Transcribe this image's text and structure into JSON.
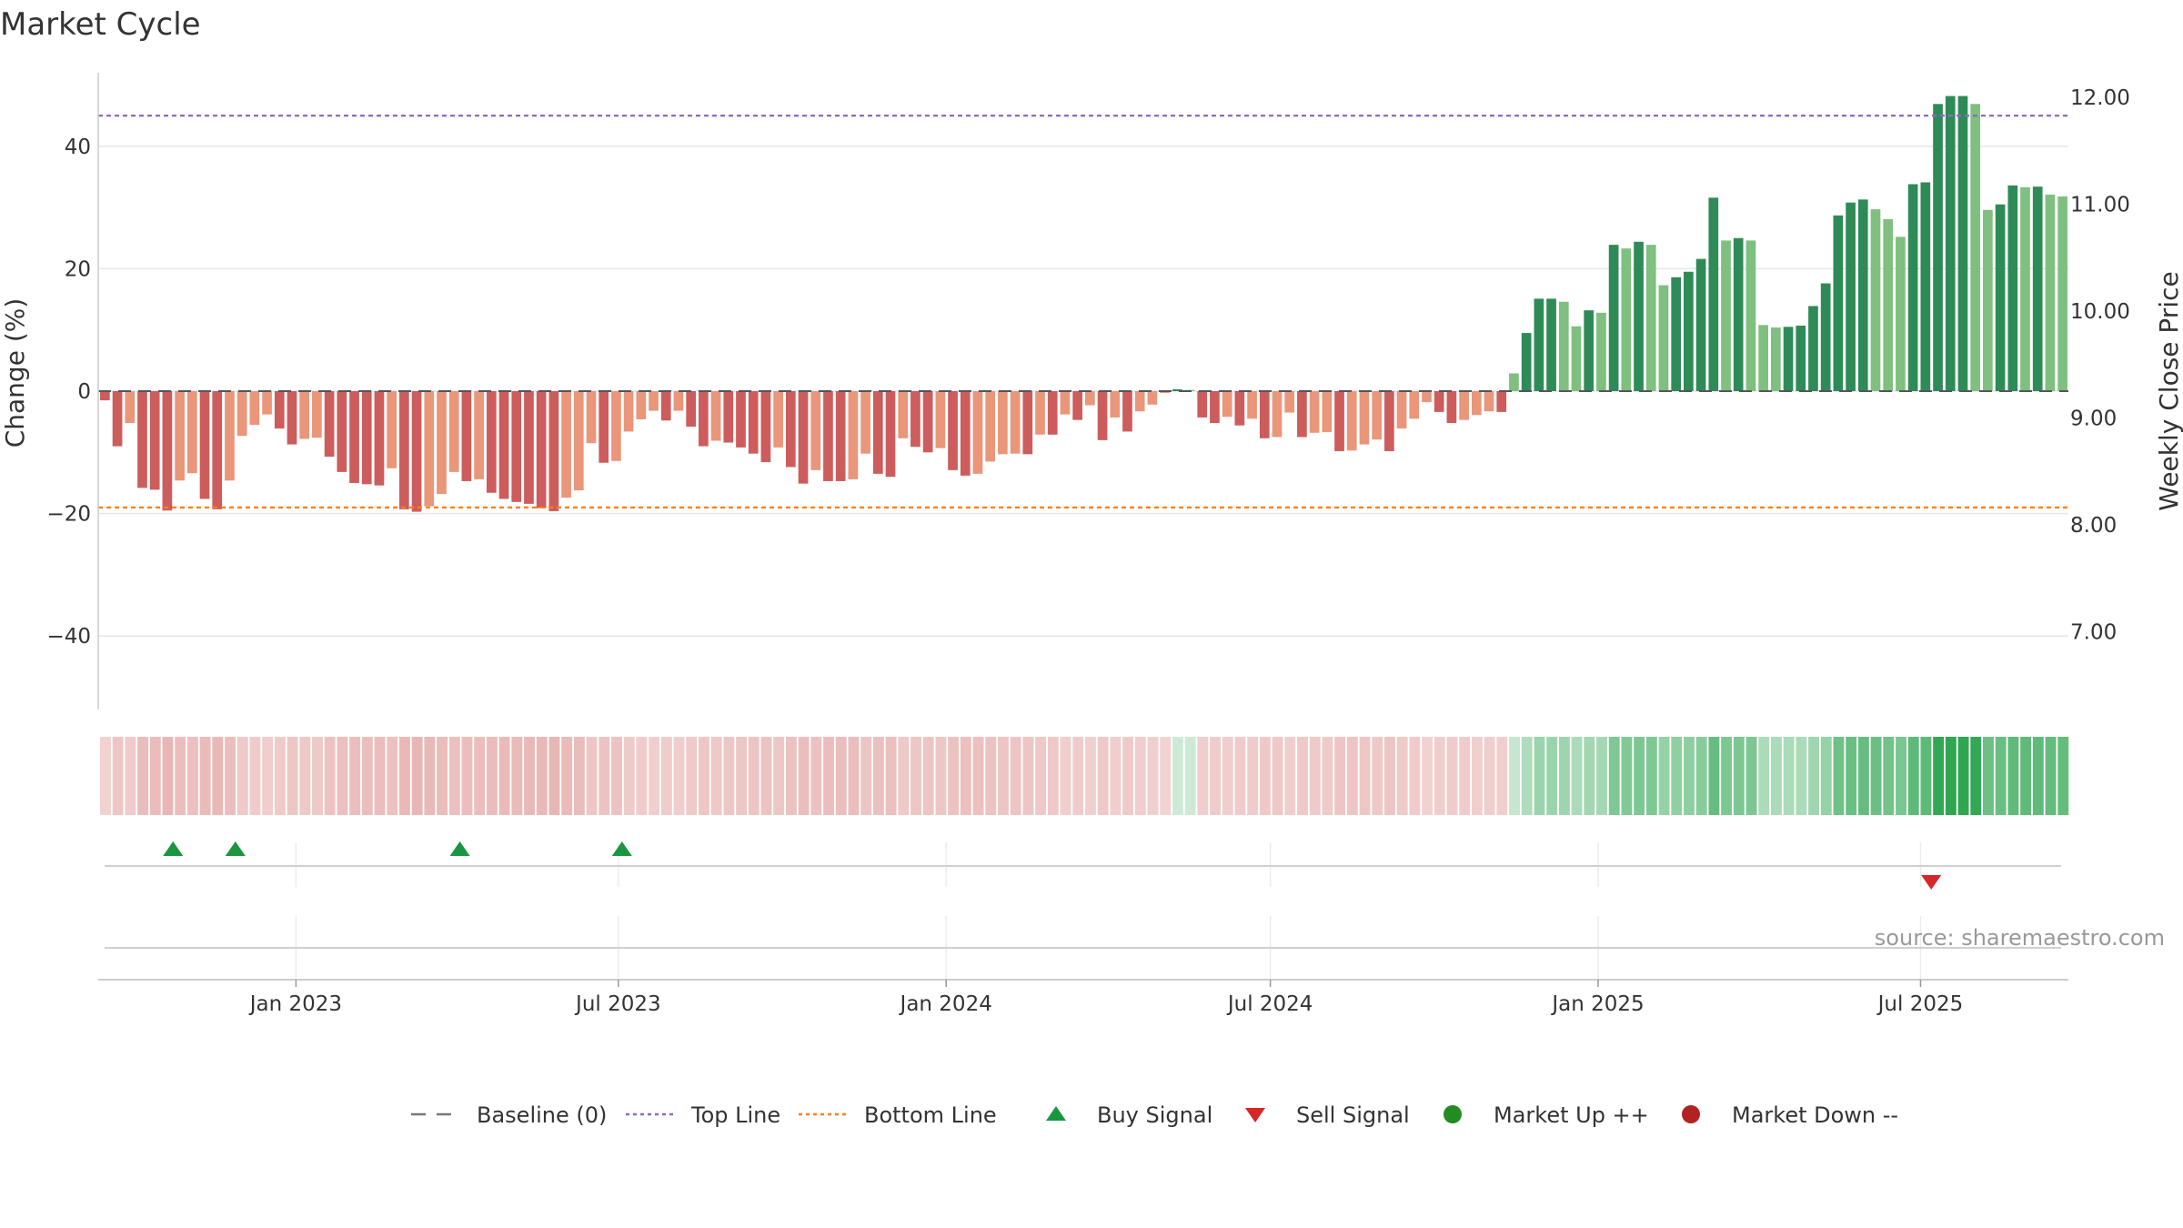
{
  "title": "Market Cycle",
  "source_text": "source: sharemaestro.com",
  "colors": {
    "up_strong": "#2e8b57",
    "up_light": "#7fbf7f",
    "down_strong": "#cd5c5c",
    "down_light": "#e9967a",
    "top_line": "#9467bd",
    "bottom_line": "#ff7f0e",
    "buy_signal": "#1a9641",
    "sell_signal": "#d62728",
    "market_up": "#228b22",
    "market_down": "#b22222",
    "baseline": "#555555"
  },
  "legend": [
    {
      "key": "baseline",
      "label": "Baseline (0)",
      "icon": "dashed-line-icon"
    },
    {
      "key": "top",
      "label": "Top Line",
      "icon": "dotted-line-icon"
    },
    {
      "key": "bottom",
      "label": "Bottom Line",
      "icon": "dotted-line-icon"
    },
    {
      "key": "buy",
      "label": "Buy Signal",
      "icon": "triangle-up-icon"
    },
    {
      "key": "sell",
      "label": "Sell Signal",
      "icon": "triangle-down-icon"
    },
    {
      "key": "mup",
      "label": "Market Up ++",
      "icon": "circle-icon"
    },
    {
      "key": "mdown",
      "label": "Market Down --",
      "icon": "circle-icon"
    }
  ],
  "chart_data": {
    "type": "bar",
    "title": "Market Cycle",
    "ylabel": "Change (%)",
    "y2label": "Weekly Close Price",
    "ylim": [
      -52,
      52
    ],
    "y2lim": [
      6.27,
      12.23
    ],
    "yticks": [
      40,
      20,
      0,
      -20,
      -40
    ],
    "yticklabels": [
      "40",
      "20",
      "0",
      "−20",
      "−40"
    ],
    "y2ticks": [
      12.0,
      11.0,
      10.0,
      9.0,
      8.0,
      7.0
    ],
    "y2ticklabels": [
      "12.00",
      "11.00",
      "10.00",
      "9.00",
      "8.00",
      "7.00"
    ],
    "xlim": [
      "2022-09-12",
      "2025-09-22"
    ],
    "xticks": [
      "2023-01-01",
      "2023-07-01",
      "2024-01-01",
      "2024-07-01",
      "2025-01-01",
      "2025-07-01"
    ],
    "xticklabels": [
      "Jan 2023",
      "Jul 2023",
      "Jan 2024",
      "Jul 2024",
      "Jan 2025",
      "Jul 2025"
    ],
    "start_date": "2022-09-12",
    "week_days": 7,
    "top_line": 45,
    "bottom_line": -19,
    "grid": true,
    "legend_position": "bottom",
    "values": [
      -1.5,
      -9,
      -5.2,
      -15.8,
      -16.1,
      -19.5,
      -14.6,
      -13.4,
      -17.6,
      -19.3,
      -14.6,
      -7.3,
      -5.5,
      -3.8,
      -6.1,
      -8.7,
      -7.8,
      -7.6,
      -10.7,
      -13.2,
      -15,
      -15.2,
      -15.4,
      -12.6,
      -19.3,
      -19.7,
      -18.8,
      -16.8,
      -13.2,
      -14.7,
      -14.4,
      -16.6,
      -17.6,
      -18.1,
      -18.4,
      -19.1,
      -19.6,
      -17.4,
      -16.2,
      -8.5,
      -11.7,
      -11.4,
      -6.6,
      -4.6,
      -3.2,
      -4.8,
      -3.2,
      -5.8,
      -9,
      -8.1,
      -8.4,
      -9.2,
      -10.2,
      -11.6,
      -9.2,
      -12.4,
      -15.1,
      -12.9,
      -14.7,
      -14.7,
      -14.4,
      -10.2,
      -13.5,
      -14,
      -7.7,
      -9.1,
      -10,
      -9.3,
      -12.9,
      -13.8,
      -13.5,
      -11.5,
      -10.3,
      -10.2,
      -10.3,
      -7.1,
      -7.1,
      -3.8,
      -4.7,
      -2.3,
      -8,
      -4.3,
      -6.6,
      -3.3,
      -2.2,
      -0.3,
      0.3,
      0.2,
      -4.3,
      -5.2,
      -4.2,
      -5.6,
      -4.5,
      -7.7,
      -7.5,
      -3.5,
      -7.5,
      -6.8,
      -6.7,
      -9.8,
      -9.7,
      -8.7,
      -7.9,
      -9.8,
      -6.1,
      -4.5,
      -1.8,
      -3.4,
      -5.2,
      -4.7,
      -3.9,
      -3.3,
      -3.4,
      2.9,
      9.5,
      15.1,
      15.1,
      14.6,
      10.6,
      13.2,
      12.8,
      23.9,
      23.3,
      24.4,
      23.9,
      17.3,
      18.6,
      19.5,
      21.6,
      31.6,
      24.6,
      25,
      24.6,
      10.8,
      10.4,
      10.5,
      10.7,
      13.9,
      17.6,
      28.7,
      30.8,
      31.3,
      29.7,
      28.1,
      25.2,
      33.8,
      34.1,
      46.9,
      48.2,
      48.2,
      46.9,
      29.6,
      30.5,
      33.6,
      33.3,
      33.4,
      32.1,
      31.8
    ],
    "buy_signal_dates": [
      "2022-10-24",
      "2022-11-28",
      "2023-04-03",
      "2023-07-03"
    ],
    "sell_signal_dates": [
      "2025-07-07"
    ]
  }
}
